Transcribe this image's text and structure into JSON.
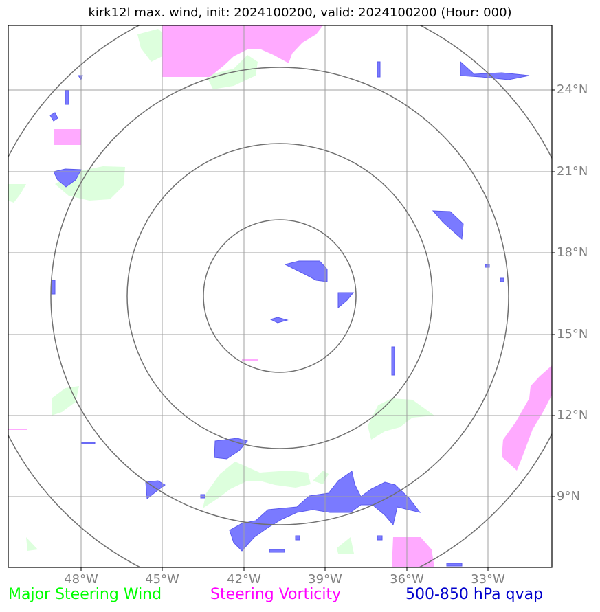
{
  "title": "kirk12l max. wind, init: 2024100200, valid: 2024100200 (Hour: 000)",
  "lat_labels": [
    "24°N",
    "21°N",
    "18°N",
    "15°N",
    "12°N",
    "9°N"
  ],
  "lon_labels": [
    "48°W",
    "45°W",
    "42°W",
    "39°W",
    "36°W",
    "33°W"
  ],
  "legend": {
    "wind": "Major Steering Wind",
    "vorticity": "Steering Vorticity",
    "qvap": "500-850 hPa qvap"
  },
  "colors": {
    "wind": "#00ff00",
    "vorticity": "#ff00ff",
    "qvap": "#0000cc",
    "wind_fill": "#ddffdd",
    "vorticity_fill": "#ffaaff",
    "qvap_fill": "#7a7aff",
    "grid": "#a0a0a0",
    "rings": "#707070"
  }
}
